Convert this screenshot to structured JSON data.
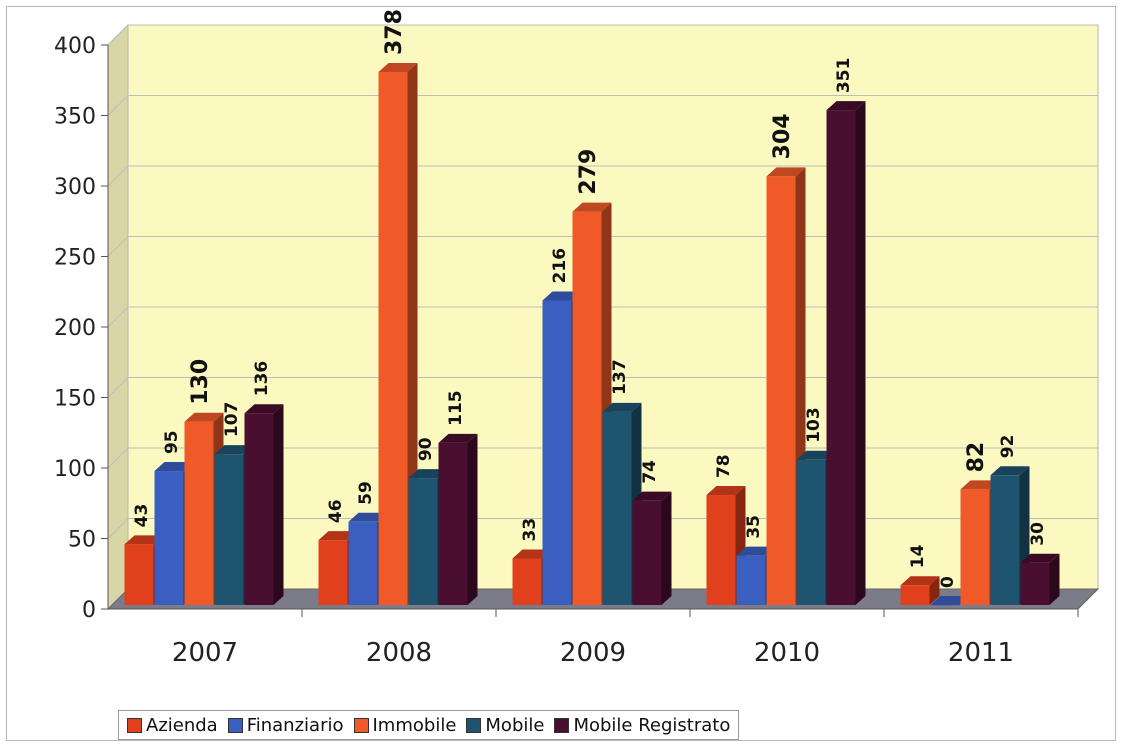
{
  "chart_data": {
    "type": "bar",
    "title": "",
    "xlabel": "",
    "ylabel": "",
    "categories": [
      "2007",
      "2008",
      "2009",
      "2010",
      "2011"
    ],
    "ylim": [
      0,
      400
    ],
    "yticks": [
      "0",
      "50",
      "100",
      "150",
      "200",
      "250",
      "300",
      "350",
      "400"
    ],
    "grid": true,
    "legend_position": "bottom",
    "series": [
      {
        "name": "Azienda",
        "color": "#e0401b",
        "values": [
          43,
          46,
          33,
          78,
          14
        ]
      },
      {
        "name": "Finanziario",
        "color": "#3a5fc0",
        "values": [
          95,
          59,
          216,
          35,
          0
        ]
      },
      {
        "name": "Immobile",
        "color": "#ef5a28",
        "values": [
          130,
          378,
          279,
          304,
          82
        ]
      },
      {
        "name": "Mobile",
        "color": "#1e5470",
        "values": [
          107,
          90,
          137,
          103,
          92
        ]
      },
      {
        "name": "Mobile Registrato",
        "color": "#4a0e30",
        "values": [
          136,
          115,
          74,
          351,
          30
        ]
      }
    ],
    "data_labels": [
      [
        "43",
        "46",
        "33",
        "78",
        "14"
      ],
      [
        "95",
        "59",
        "216",
        "35",
        "0"
      ],
      [
        "130",
        "378",
        "279",
        "304",
        "82"
      ],
      [
        "107",
        "90",
        "137",
        "103",
        "92"
      ],
      [
        "136",
        "115",
        "74",
        "351",
        "30"
      ]
    ],
    "plot_background": "#fbf9c0"
  }
}
